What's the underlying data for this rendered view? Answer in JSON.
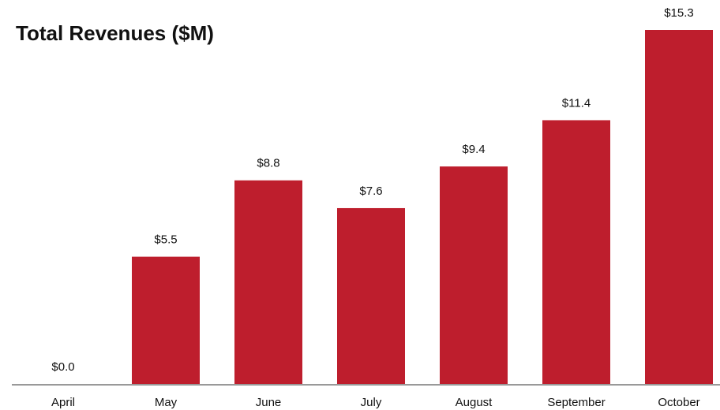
{
  "chart_data": {
    "type": "bar",
    "title": "Total Revenues ($M)",
    "categories": [
      "April",
      "May",
      "June",
      "July",
      "August",
      "September",
      "October"
    ],
    "values": [
      0.0,
      5.5,
      8.8,
      7.6,
      9.4,
      11.4,
      15.3
    ],
    "value_labels": [
      "$0.0",
      "$5.5",
      "$8.8",
      "$7.6",
      "$9.4",
      "$11.4",
      "$15.3"
    ],
    "color": "#be1e2d"
  }
}
